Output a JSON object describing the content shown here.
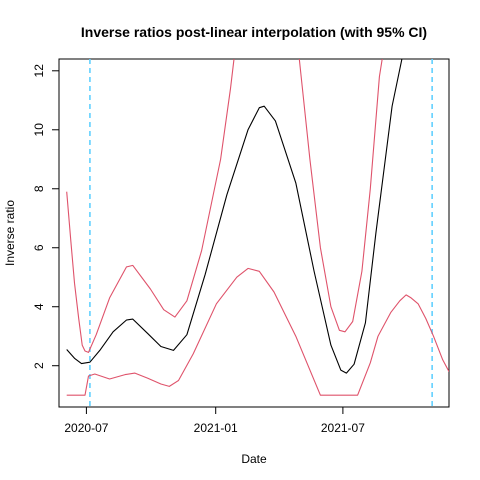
{
  "chart_data": {
    "type": "line",
    "title": "Inverse ratios post-linear interpolation (with 95% CI)",
    "xlabel": "Date",
    "ylabel": "Inverse ratio",
    "x_ticks": [
      "2020-07",
      "2021-01",
      "2021-07"
    ],
    "y_ticks": [
      "2",
      "4",
      "6",
      "8",
      "10",
      "12"
    ],
    "xlim": [
      "2020-05-23",
      "2021-11-29"
    ],
    "ylim": [
      0.6,
      12.4
    ],
    "colors": {
      "estimate": "#000000",
      "ci": "#df536b",
      "vline": "#61d0ff"
    },
    "vlines": [
      "2020-07-06",
      "2021-11-05"
    ],
    "series": [
      {
        "role": "estimate",
        "points": [
          [
            "2020-06-03",
            2.55
          ],
          [
            "2020-06-14",
            2.25
          ],
          [
            "2020-06-24",
            2.07
          ],
          [
            "2020-07-06",
            2.12
          ],
          [
            "2020-07-20",
            2.52
          ],
          [
            "2020-08-08",
            3.15
          ],
          [
            "2020-08-27",
            3.55
          ],
          [
            "2020-09-05",
            3.58
          ],
          [
            "2020-09-26",
            3.1
          ],
          [
            "2020-10-15",
            2.65
          ],
          [
            "2020-11-02",
            2.52
          ],
          [
            "2020-11-21",
            3.05
          ],
          [
            "2020-12-17",
            5.1
          ],
          [
            "2021-01-17",
            7.8
          ],
          [
            "2021-02-16",
            10.0
          ],
          [
            "2021-03-04",
            10.75
          ],
          [
            "2021-03-11",
            10.8
          ],
          [
            "2021-03-27",
            10.3
          ],
          [
            "2021-04-25",
            8.2
          ],
          [
            "2021-05-21",
            5.2
          ],
          [
            "2021-06-14",
            2.7
          ],
          [
            "2021-06-28",
            1.85
          ],
          [
            "2021-07-06",
            1.75
          ],
          [
            "2021-07-17",
            2.05
          ],
          [
            "2021-08-02",
            3.45
          ],
          [
            "2021-08-17",
            6.5
          ],
          [
            "2021-09-09",
            10.8
          ],
          [
            "2021-09-23",
            12.4
          ]
        ]
      },
      {
        "role": "upper-ci",
        "points": [
          [
            "2020-06-03",
            7.9
          ],
          [
            "2020-06-09",
            6.2
          ],
          [
            "2020-06-14",
            4.8
          ],
          [
            "2020-06-20",
            3.6
          ],
          [
            "2020-06-25",
            2.7
          ],
          [
            "2020-06-29",
            2.5
          ],
          [
            "2020-07-04",
            2.45
          ],
          [
            "2020-07-15",
            3.05
          ],
          [
            "2020-08-03",
            4.3
          ],
          [
            "2020-08-27",
            5.35
          ],
          [
            "2020-09-05",
            5.4
          ],
          [
            "2020-09-30",
            4.6
          ],
          [
            "2020-10-19",
            3.9
          ],
          [
            "2020-11-04",
            3.65
          ],
          [
            "2020-11-21",
            4.2
          ],
          [
            "2020-12-12",
            5.9
          ],
          [
            "2021-01-08",
            9.0
          ],
          [
            "2021-01-22",
            11.4
          ],
          [
            "2021-01-27",
            12.4
          ]
        ]
      },
      {
        "role": "upper-ci",
        "points": [
          [
            "2021-04-30",
            12.4
          ],
          [
            "2021-05-04",
            11.5
          ],
          [
            "2021-05-15",
            9.0
          ],
          [
            "2021-05-30",
            6.0
          ],
          [
            "2021-06-14",
            4.0
          ],
          [
            "2021-06-26",
            3.2
          ],
          [
            "2021-07-04",
            3.15
          ],
          [
            "2021-07-15",
            3.5
          ],
          [
            "2021-07-28",
            5.2
          ],
          [
            "2021-08-09",
            8.0
          ],
          [
            "2021-08-22",
            11.8
          ],
          [
            "2021-08-26",
            12.4
          ]
        ]
      },
      {
        "role": "lower-ci",
        "points": [
          [
            "2020-06-03",
            1.0
          ],
          [
            "2020-06-29",
            1.0
          ],
          [
            "2020-07-04",
            1.65
          ],
          [
            "2020-07-13",
            1.72
          ],
          [
            "2020-08-03",
            1.55
          ],
          [
            "2020-08-25",
            1.7
          ],
          [
            "2020-09-08",
            1.75
          ],
          [
            "2020-09-26",
            1.58
          ],
          [
            "2020-10-15",
            1.38
          ],
          [
            "2020-10-27",
            1.3
          ],
          [
            "2020-11-09",
            1.5
          ],
          [
            "2020-11-30",
            2.4
          ],
          [
            "2021-01-02",
            4.1
          ],
          [
            "2021-01-31",
            5.0
          ],
          [
            "2021-02-16",
            5.3
          ],
          [
            "2021-03-04",
            5.2
          ],
          [
            "2021-03-25",
            4.5
          ],
          [
            "2021-04-25",
            3.0
          ],
          [
            "2021-05-30",
            1.0
          ],
          [
            "2021-07-22",
            1.0
          ],
          [
            "2021-08-09",
            2.1
          ],
          [
            "2021-08-20",
            3.0
          ],
          [
            "2021-09-07",
            3.8
          ],
          [
            "2021-09-20",
            4.2
          ],
          [
            "2021-09-29",
            4.4
          ],
          [
            "2021-10-06",
            4.3
          ],
          [
            "2021-10-16",
            4.1
          ],
          [
            "2021-10-27",
            3.6
          ],
          [
            "2021-11-07",
            3.0
          ],
          [
            "2021-11-20",
            2.2
          ],
          [
            "2021-11-29",
            1.8
          ]
        ]
      }
    ]
  }
}
